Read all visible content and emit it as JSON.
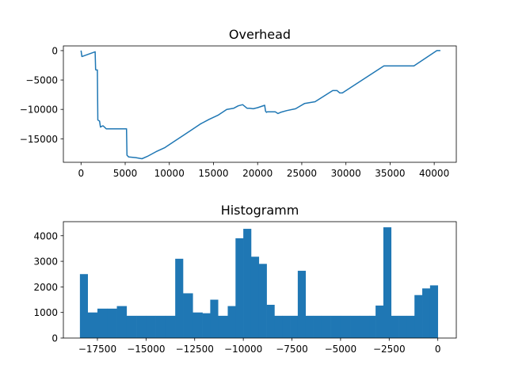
{
  "chart_data": [
    {
      "type": "line",
      "title": "Overhead",
      "xlabel": "",
      "ylabel": "",
      "xlim": [
        -2000,
        42500
      ],
      "ylim": [
        -19000,
        800
      ],
      "xticks": [
        0,
        5000,
        10000,
        15000,
        20000,
        25000,
        30000,
        35000,
        40000
      ],
      "yticks": [
        0,
        -5000,
        -10000,
        -15000
      ],
      "color": "#1f77b4",
      "grid": false,
      "series": [
        {
          "x": [
            0,
            100,
            1600,
            1650,
            1700,
            1850,
            1900,
            2100,
            2200,
            2450,
            2500,
            2850,
            3050,
            5150,
            5200,
            5400,
            6200,
            6900,
            7500,
            8500,
            9500,
            10500,
            11500,
            12500,
            13500,
            14500,
            15500,
            16500,
            17300,
            17800,
            18300,
            18800,
            19100,
            19500,
            20000,
            20800,
            20900,
            21000,
            21100,
            22000,
            22300,
            22600,
            23300,
            24300,
            25300,
            26500,
            28500,
            29000,
            29300,
            29600,
            34300,
            37700,
            40300,
            40700
          ],
          "y": [
            0,
            -1000,
            -200,
            -3200,
            -3300,
            -3300,
            -11800,
            -12000,
            -13000,
            -12800,
            -12800,
            -13300,
            -13300,
            -13300,
            -17800,
            -18100,
            -18200,
            -18400,
            -18000,
            -17200,
            -16500,
            -15500,
            -14500,
            -13500,
            -12500,
            -11700,
            -11000,
            -10000,
            -9800,
            -9400,
            -9200,
            -9800,
            -9800,
            -9900,
            -9700,
            -9300,
            -10300,
            -10500,
            -10400,
            -10400,
            -10700,
            -10500,
            -10200,
            -9900,
            -9000,
            -8700,
            -6800,
            -6800,
            -7200,
            -7200,
            -2600,
            -2600,
            0,
            0
          ]
        }
      ]
    },
    {
      "type": "bar",
      "title": "Histogramm",
      "xlabel": "",
      "ylabel": "",
      "xlim": [
        -19250,
        950
      ],
      "ylim": [
        0,
        4550
      ],
      "xticks": [
        -17500,
        -15000,
        -12500,
        -10000,
        -7500,
        -5000,
        -2500,
        0
      ],
      "yticks": [
        0,
        1000,
        2000,
        3000,
        4000
      ],
      "color": "#1f77b4",
      "grid": false,
      "bin_edges": [
        -18400,
        -18000,
        -17500,
        -17000,
        -16500,
        -16000,
        -15500,
        -15000,
        -14500,
        -14000,
        -13500,
        -13100,
        -12600,
        -12100,
        -11700,
        -11300,
        -10800,
        -10400,
        -10000,
        -9600,
        -9200,
        -8800,
        -8400,
        -8000,
        -7600,
        -7200,
        -6800,
        -6400,
        -6000,
        -5500,
        -5000,
        -4500,
        -4000,
        -3500,
        -3200,
        -2800,
        -2400,
        -2000,
        -1600,
        -1200,
        -800,
        -400,
        0
      ],
      "values": [
        2500,
        1000,
        1150,
        1150,
        1250,
        870,
        870,
        870,
        870,
        870,
        3100,
        1750,
        1000,
        970,
        1500,
        870,
        1250,
        3900,
        4270,
        3180,
        2900,
        1300,
        870,
        870,
        870,
        2630,
        870,
        870,
        870,
        870,
        870,
        870,
        870,
        870,
        1270,
        4330,
        870,
        870,
        870,
        1680,
        1940,
        2060
      ]
    }
  ]
}
